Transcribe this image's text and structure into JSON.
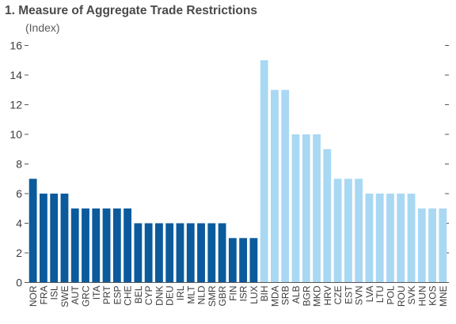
{
  "chart_data": {
    "type": "bar",
    "title": "1. Measure of Aggregate Trade Restrictions",
    "subtitle": "(Index)",
    "xlabel": "",
    "ylabel": "",
    "ylim": [
      0,
      16
    ],
    "yticks": [
      0,
      2,
      4,
      6,
      8,
      10,
      12,
      14,
      16
    ],
    "grid": false,
    "categories": [
      "NOR",
      "FRA",
      "ISL",
      "SWE",
      "AUT",
      "GRC",
      "ITA",
      "PRT",
      "ESP",
      "CHE",
      "BEL",
      "CYP",
      "DNK",
      "DEU",
      "IRL",
      "MLT",
      "NLD",
      "SMR",
      "GBR",
      "FIN",
      "ISR",
      "LUX",
      "BIH",
      "MDA",
      "SRB",
      "ALB",
      "BGR",
      "MKD",
      "HRV",
      "CZE",
      "EST",
      "SVN",
      "LVA",
      "LTU",
      "POL",
      "ROU",
      "SVK",
      "HUN",
      "KOS",
      "MNE"
    ],
    "values": [
      7,
      6,
      6,
      6,
      5,
      5,
      5,
      5,
      5,
      5,
      4,
      4,
      4,
      4,
      4,
      4,
      4,
      4,
      4,
      3,
      3,
      3,
      15,
      13,
      13,
      10,
      10,
      10,
      9,
      7,
      7,
      7,
      6,
      6,
      6,
      6,
      6,
      5,
      5,
      5
    ],
    "groups": [
      {
        "count": 22,
        "color": "#0b5a9c"
      },
      {
        "count": 18,
        "color": "#a9d8f3"
      }
    ]
  }
}
